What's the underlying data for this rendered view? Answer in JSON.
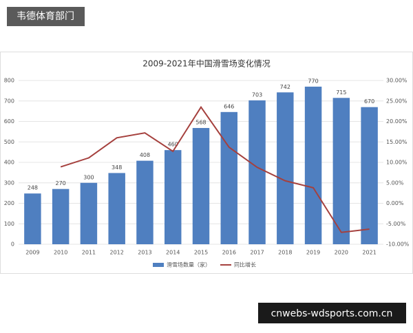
{
  "header": {
    "label": "韦德体育部门"
  },
  "footer": {
    "label": "cnwebs-wdsports.com.cn"
  },
  "chart_data": {
    "type": "bar",
    "title": "2009-2021年中国滑雪场变化情况",
    "categories": [
      "2009",
      "2010",
      "2011",
      "2012",
      "2013",
      "2014",
      "2015",
      "2016",
      "2017",
      "2018",
      "2019",
      "2020",
      "2021"
    ],
    "series": [
      {
        "name": "滑雪场数量（家）",
        "color": "#4f7fc0",
        "values": [
          248,
          270,
          300,
          348,
          408,
          460,
          568,
          646,
          703,
          742,
          770,
          715,
          670
        ]
      },
      {
        "name": "同比增长",
        "color": "#a5403d",
        "type": "line",
        "axis": "y2",
        "values": [
          null,
          8.9,
          11.1,
          16.0,
          17.2,
          12.7,
          23.5,
          13.7,
          8.8,
          5.5,
          3.8,
          -7.1,
          -6.3
        ]
      }
    ],
    "ylim": [
      0,
      800
    ],
    "yticks": [
      0,
      100,
      200,
      300,
      400,
      500,
      600,
      700,
      800
    ],
    "y2lim": [
      -10,
      30
    ],
    "y2ticks": [
      {
        "value": -10,
        "label": "-10.00%"
      },
      {
        "value": -5,
        "label": "-5.00%"
      },
      {
        "value": 0,
        "label": "0.00%"
      },
      {
        "value": 5,
        "label": "5.00%"
      },
      {
        "value": 10,
        "label": "10.00%"
      },
      {
        "value": 15,
        "label": "15.00%"
      },
      {
        "value": 20,
        "label": "20.00%"
      },
      {
        "value": 25,
        "label": "25.00%"
      },
      {
        "value": 30,
        "label": "30.00%"
      }
    ],
    "grid": true,
    "legend": "bottom"
  }
}
